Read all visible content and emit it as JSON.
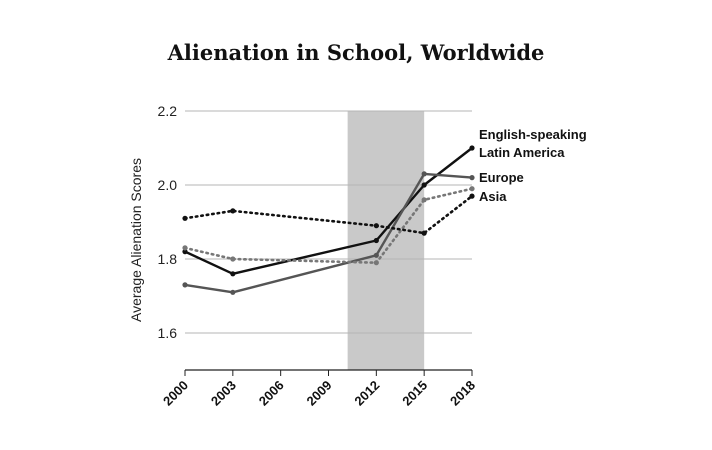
{
  "chart_data": {
    "type": "line",
    "title": "Alienation in School, Worldwide",
    "ylabel": "Average Alienation Scores",
    "xlabel": "",
    "x": [
      2000,
      2003,
      2006,
      2009,
      2012,
      2015,
      2018
    ],
    "x_ticks": [
      "2000",
      "2003",
      "2006",
      "2009",
      "2012",
      "2015",
      "2018"
    ],
    "y_ticks": [
      "1.6",
      "1.8",
      "2.0",
      "2.2"
    ],
    "ylim": [
      1.5,
      2.2
    ],
    "grid": "horizontal",
    "shaded_region": [
      2010.2,
      2015
    ],
    "series": [
      {
        "name": "English-speaking",
        "style": "solid",
        "color": "#111111",
        "x": [
          2000,
          2003,
          2012,
          2015,
          2018
        ],
        "values": [
          1.82,
          1.76,
          1.85,
          2.0,
          2.1
        ]
      },
      {
        "name": "Latin America",
        "style": "solid",
        "color": "#555555",
        "x": [
          2000,
          2003,
          2012,
          2015,
          2018
        ],
        "values": [
          1.73,
          1.71,
          1.81,
          2.03,
          2.02
        ]
      },
      {
        "name": "Europe",
        "style": "dotted",
        "color": "#777777",
        "x": [
          2000,
          2003,
          2012,
          2015,
          2018
        ],
        "values": [
          1.83,
          1.8,
          1.79,
          1.96,
          1.99
        ]
      },
      {
        "name": "Asia",
        "style": "dotted",
        "color": "#111111",
        "x": [
          2000,
          2003,
          2012,
          2015,
          2018
        ],
        "values": [
          1.91,
          1.93,
          1.89,
          1.87,
          1.97
        ]
      }
    ]
  }
}
